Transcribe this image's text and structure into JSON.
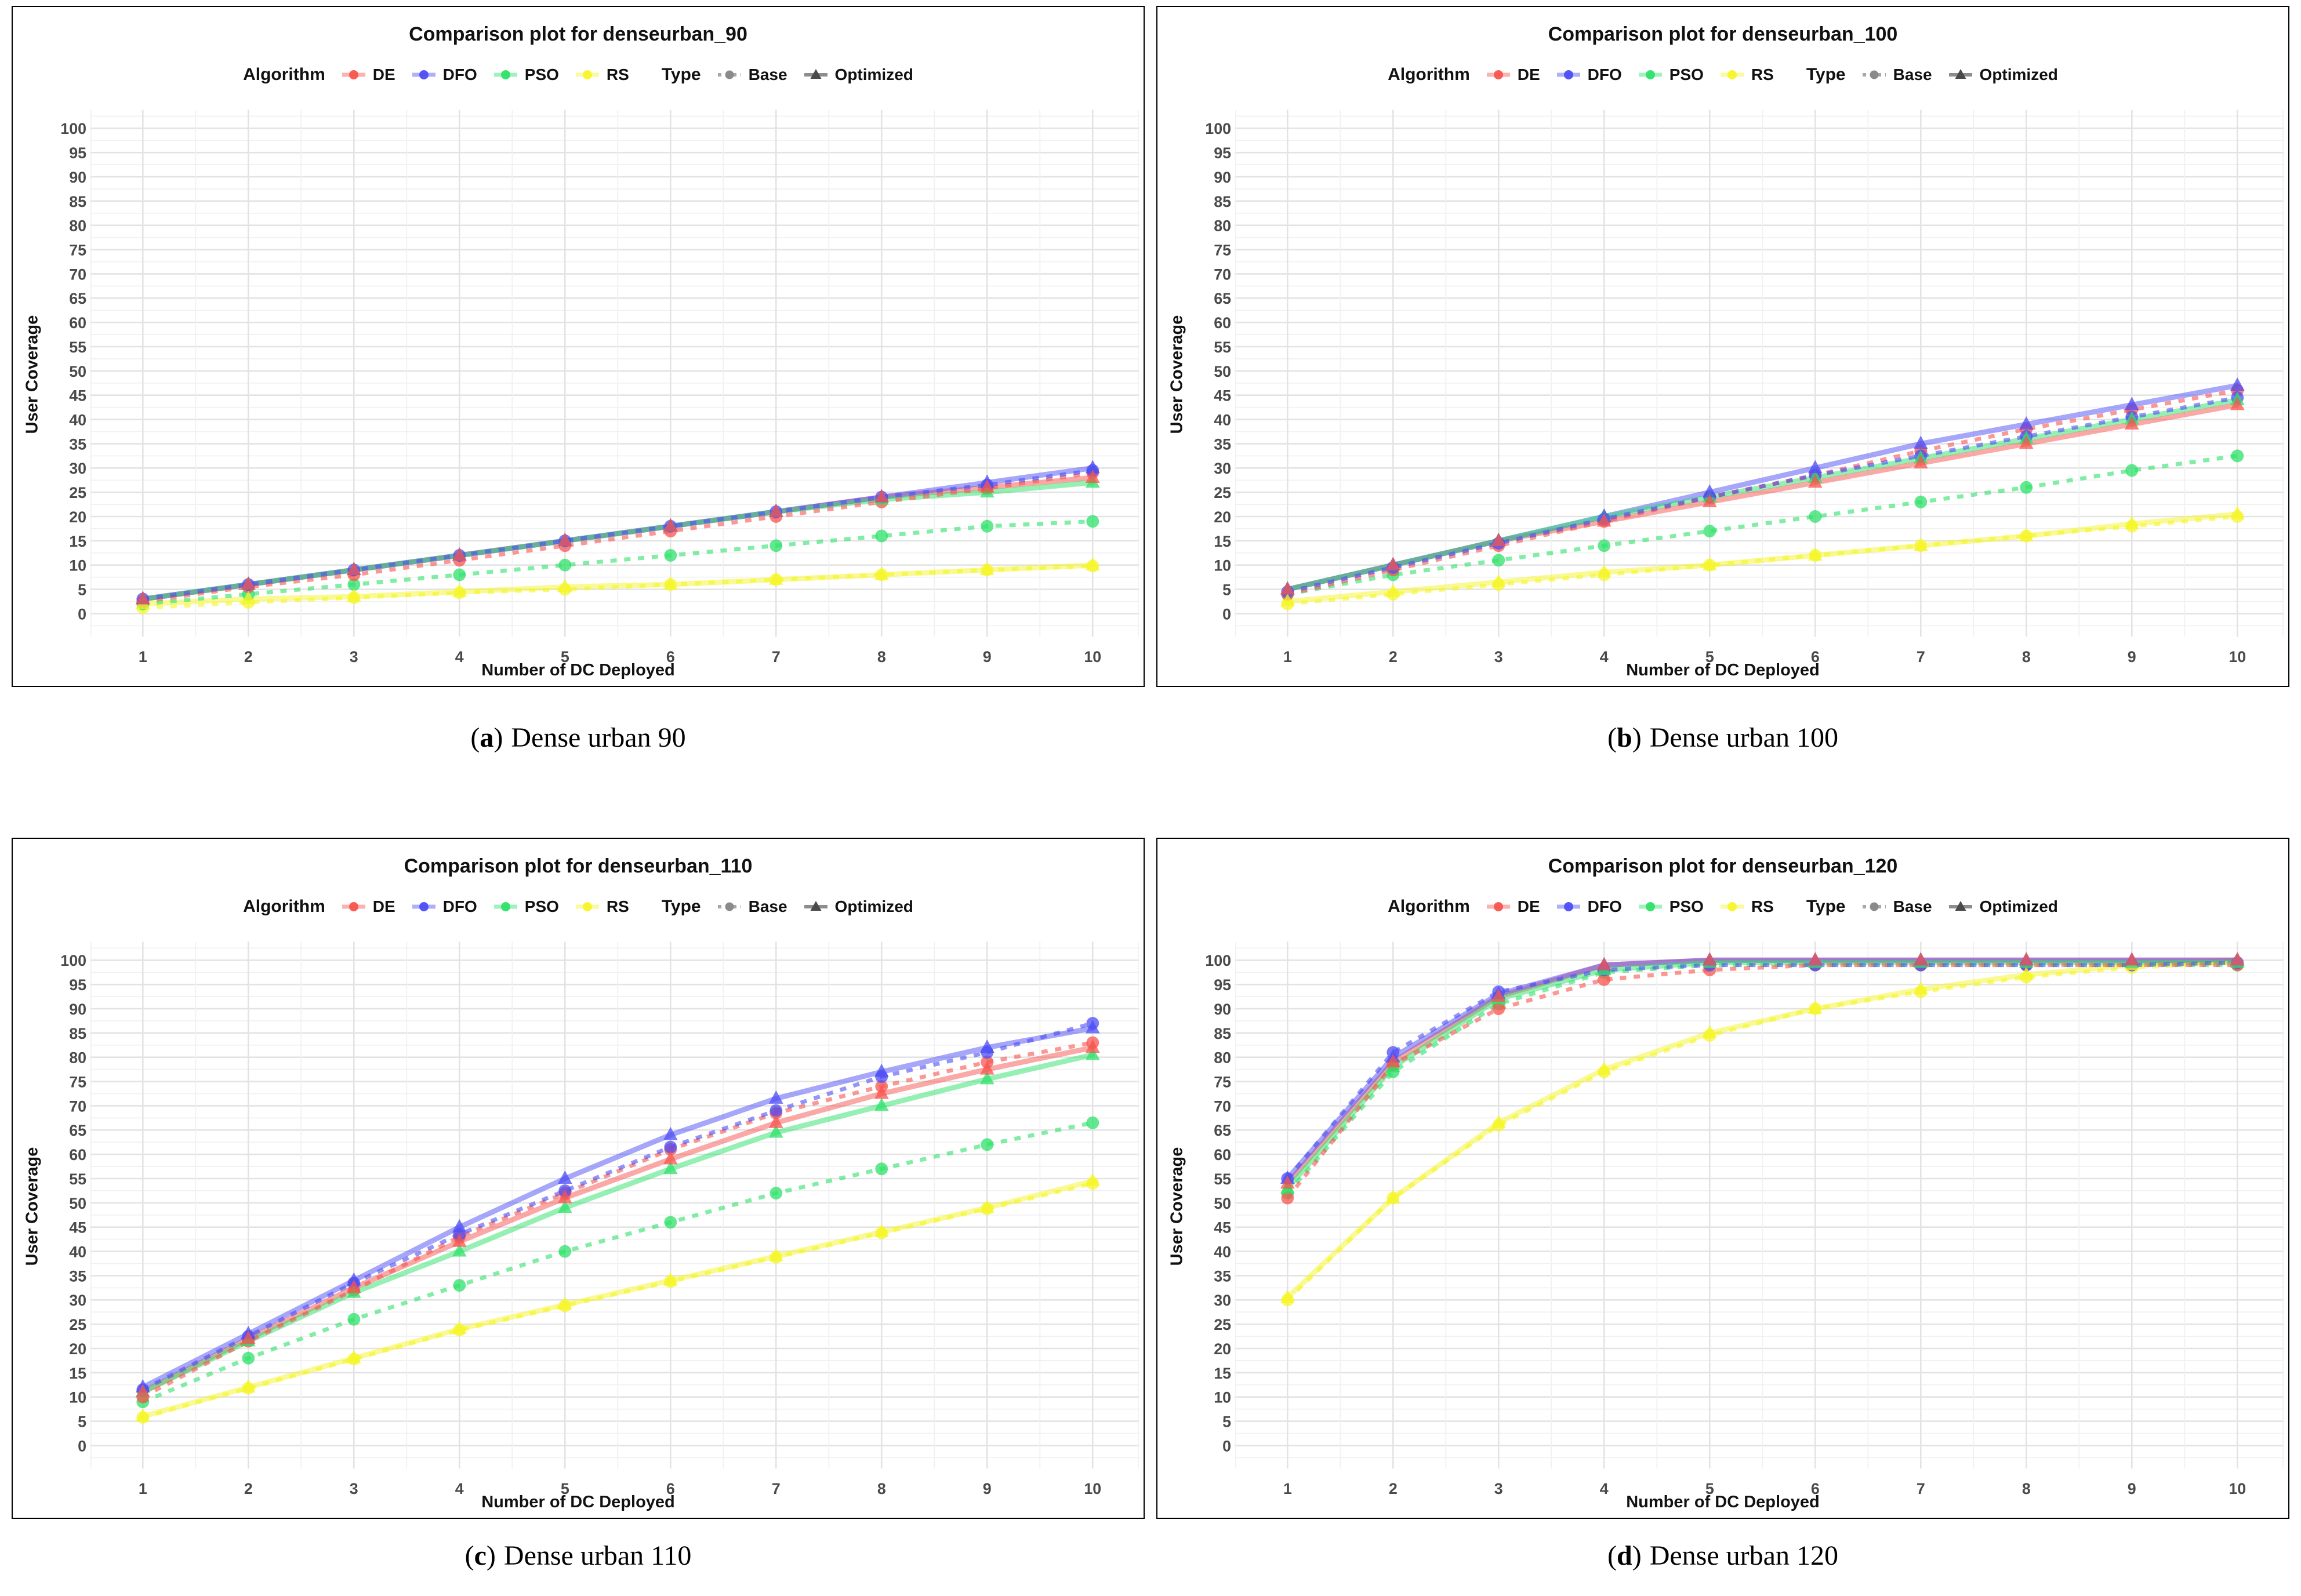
{
  "page": {
    "background": "#ffffff"
  },
  "legend": {
    "algorithm_label": "Algorithm",
    "type_label": "Type",
    "algorithms": [
      {
        "key": "DE",
        "label": "DE",
        "color": "#f8544e"
      },
      {
        "key": "DFO",
        "label": "DFO",
        "color": "#4d4df5"
      },
      {
        "key": "PSO",
        "label": "PSO",
        "color": "#2de169"
      },
      {
        "key": "RS",
        "label": "RS",
        "color": "#f5f52a"
      }
    ],
    "types": [
      {
        "key": "Base",
        "label": "Base",
        "style": "dotted",
        "marker": "circle",
        "color": "#8a8a8a"
      },
      {
        "key": "Optimized",
        "label": "Optimized",
        "style": "solid",
        "marker": "triangle",
        "color": "#676767"
      }
    ]
  },
  "captions": {
    "open": "(",
    "close": ")"
  },
  "style_colors": {
    "grid_major": "#e3e3e3",
    "grid_minor": "#f1f1f1",
    "tick_label": "#4a4a4a",
    "panel_border": "#000000"
  },
  "chart_data": [
    {
      "type": "line",
      "title": "Comparison plot for denseurban_90",
      "caption_letter": "a",
      "caption_label": "Dense urban 90",
      "xlabel": "Number of DC Deployed",
      "ylabel": "User Coverage",
      "x": [
        1,
        2,
        3,
        4,
        5,
        6,
        7,
        8,
        9,
        10
      ],
      "ylim": [
        0,
        100
      ],
      "ytick_step": 5,
      "series": [
        {
          "name": "DE Base",
          "algorithm": "DE",
          "variant": "Base",
          "dashed": true,
          "marker": "circle",
          "values": [
            2.5,
            5.5,
            8,
            11,
            14,
            17,
            20,
            23,
            25.8,
            29
          ]
        },
        {
          "name": "DE Optimized",
          "algorithm": "DE",
          "variant": "Optimized",
          "dashed": false,
          "marker": "triangle",
          "values": [
            3,
            6,
            9,
            12,
            15,
            18,
            21,
            24,
            26,
            28
          ]
        },
        {
          "name": "DFO Base",
          "algorithm": "DFO",
          "variant": "Base",
          "dashed": true,
          "marker": "circle",
          "values": [
            3,
            6,
            9,
            12,
            15,
            18,
            21,
            24,
            26.5,
            29.5
          ]
        },
        {
          "name": "DFO Optimized",
          "algorithm": "DFO",
          "variant": "Optimized",
          "dashed": false,
          "marker": "triangle",
          "values": [
            3,
            6,
            9,
            12,
            15,
            18,
            21,
            24,
            27,
            30
          ]
        },
        {
          "name": "PSO Base",
          "algorithm": "PSO",
          "variant": "Base",
          "dashed": true,
          "marker": "circle",
          "values": [
            2,
            4,
            6,
            8,
            10,
            12,
            14,
            16,
            18,
            19
          ]
        },
        {
          "name": "PSO Optimized",
          "algorithm": "PSO",
          "variant": "Optimized",
          "dashed": false,
          "marker": "triangle",
          "values": [
            3,
            6,
            9,
            12,
            15,
            18,
            21,
            23.5,
            25,
            27
          ]
        },
        {
          "name": "RS Base",
          "algorithm": "RS",
          "variant": "Base",
          "dashed": true,
          "marker": "circle",
          "values": [
            1.2,
            2.3,
            3.3,
            4.3,
            5,
            6,
            7,
            8,
            9,
            9.8
          ]
        },
        {
          "name": "RS Optimized",
          "algorithm": "RS",
          "variant": "Optimized",
          "dashed": false,
          "marker": "triangle",
          "values": [
            2,
            3,
            3.5,
            4.5,
            5.5,
            6,
            7,
            8,
            9,
            10
          ]
        }
      ]
    },
    {
      "type": "line",
      "title": "Comparison plot for denseurban_100",
      "caption_letter": "b",
      "caption_label": "Dense urban 100",
      "xlabel": "Number of DC Deployed",
      "ylabel": "User Coverage",
      "x": [
        1,
        2,
        3,
        4,
        5,
        6,
        7,
        8,
        9,
        10
      ],
      "ylim": [
        0,
        100
      ],
      "ytick_step": 5,
      "series": [
        {
          "name": "DE Base",
          "algorithm": "DE",
          "variant": "Base",
          "dashed": true,
          "marker": "circle",
          "values": [
            4,
            9,
            14,
            19,
            24,
            28.5,
            33.5,
            38,
            42,
            46
          ]
        },
        {
          "name": "DE Optimized",
          "algorithm": "DE",
          "variant": "Optimized",
          "dashed": false,
          "marker": "triangle",
          "values": [
            5,
            10,
            15,
            19,
            23,
            27,
            31,
            35,
            39,
            43
          ]
        },
        {
          "name": "DFO Base",
          "algorithm": "DFO",
          "variant": "Base",
          "dashed": true,
          "marker": "circle",
          "values": [
            4.5,
            9.5,
            14.5,
            19.5,
            24,
            28.5,
            32.5,
            36.5,
            40.5,
            44.5
          ]
        },
        {
          "name": "DFO Optimized",
          "algorithm": "DFO",
          "variant": "Optimized",
          "dashed": false,
          "marker": "triangle",
          "values": [
            5,
            10,
            15,
            20,
            25,
            30,
            35,
            39,
            43,
            47
          ]
        },
        {
          "name": "PSO Base",
          "algorithm": "PSO",
          "variant": "Base",
          "dashed": true,
          "marker": "circle",
          "values": [
            4,
            8,
            11,
            14,
            17,
            20,
            23,
            26,
            29.5,
            32.5
          ]
        },
        {
          "name": "PSO Optimized",
          "algorithm": "PSO",
          "variant": "Optimized",
          "dashed": false,
          "marker": "triangle",
          "values": [
            5,
            10,
            15,
            20,
            24,
            28,
            32,
            36,
            40,
            44
          ]
        },
        {
          "name": "RS Base",
          "algorithm": "RS",
          "variant": "Base",
          "dashed": true,
          "marker": "circle",
          "values": [
            2,
            4,
            6,
            8,
            10,
            12,
            14,
            16,
            18,
            20
          ]
        },
        {
          "name": "RS Optimized",
          "algorithm": "RS",
          "variant": "Optimized",
          "dashed": false,
          "marker": "triangle",
          "values": [
            2.5,
            4.5,
            6.5,
            8.5,
            10,
            12,
            14,
            16,
            18.5,
            20.5
          ]
        }
      ]
    },
    {
      "type": "line",
      "title": "Comparison plot for denseurban_110",
      "caption_letter": "c",
      "caption_label": "Dense urban 110",
      "xlabel": "Number of DC Deployed",
      "ylabel": "User Coverage",
      "x": [
        1,
        2,
        3,
        4,
        5,
        6,
        7,
        8,
        9,
        10
      ],
      "ylim": [
        0,
        100
      ],
      "ytick_step": 5,
      "series": [
        {
          "name": "DE Base",
          "algorithm": "DE",
          "variant": "Base",
          "dashed": true,
          "marker": "circle",
          "values": [
            10,
            21.5,
            32,
            43,
            52,
            61,
            68.5,
            74,
            79,
            83
          ]
        },
        {
          "name": "DE Optimized",
          "algorithm": "DE",
          "variant": "Optimized",
          "dashed": false,
          "marker": "triangle",
          "values": [
            11,
            22,
            32.5,
            42,
            51,
            59,
            66.5,
            72.5,
            77.5,
            82
          ]
        },
        {
          "name": "DFO Base",
          "algorithm": "DFO",
          "variant": "Base",
          "dashed": true,
          "marker": "circle",
          "values": [
            11.5,
            22.5,
            33.5,
            43.5,
            52.5,
            61.5,
            69,
            76,
            81,
            87
          ]
        },
        {
          "name": "DFO Optimized",
          "algorithm": "DFO",
          "variant": "Optimized",
          "dashed": false,
          "marker": "triangle",
          "values": [
            12,
            23,
            34,
            45,
            55,
            64,
            71.5,
            77,
            82,
            86
          ]
        },
        {
          "name": "PSO Base",
          "algorithm": "PSO",
          "variant": "Base",
          "dashed": true,
          "marker": "circle",
          "values": [
            9,
            18,
            26,
            33,
            40,
            46,
            52,
            57,
            62,
            66.5
          ]
        },
        {
          "name": "PSO Optimized",
          "algorithm": "PSO",
          "variant": "Optimized",
          "dashed": false,
          "marker": "triangle",
          "values": [
            11,
            21.5,
            31.5,
            40,
            49,
            57,
            64.5,
            70,
            75.5,
            80.5
          ]
        },
        {
          "name": "RS Base",
          "algorithm": "RS",
          "variant": "Base",
          "dashed": true,
          "marker": "circle",
          "values": [
            5.8,
            11.8,
            17.8,
            23.8,
            28.8,
            33.8,
            38.8,
            43.8,
            48.8,
            54
          ]
        },
        {
          "name": "RS Optimized",
          "algorithm": "RS",
          "variant": "Optimized",
          "dashed": false,
          "marker": "triangle",
          "values": [
            6,
            12,
            18,
            24,
            29,
            34,
            39,
            44,
            49,
            54.5
          ]
        }
      ]
    },
    {
      "type": "line",
      "title": "Comparison plot for denseurban_120",
      "caption_letter": "d",
      "caption_label": "Dense urban 120",
      "xlabel": "Number of DC Deployed",
      "ylabel": "User Coverage",
      "x": [
        1,
        2,
        3,
        4,
        5,
        6,
        7,
        8,
        9,
        10
      ],
      "ylim": [
        0,
        100
      ],
      "ytick_step": 5,
      "series": [
        {
          "name": "DE Base",
          "algorithm": "DE",
          "variant": "Base",
          "dashed": true,
          "marker": "circle",
          "values": [
            51,
            78.5,
            90,
            96,
            98,
            99,
            99,
            99,
            99,
            99
          ]
        },
        {
          "name": "DE Optimized",
          "algorithm": "DE",
          "variant": "Optimized",
          "dashed": false,
          "marker": "triangle",
          "values": [
            54,
            79,
            92.5,
            99,
            100,
            100,
            100,
            100,
            100,
            100
          ]
        },
        {
          "name": "DFO Base",
          "algorithm": "DFO",
          "variant": "Base",
          "dashed": true,
          "marker": "circle",
          "values": [
            55,
            81,
            93.5,
            98,
            99,
            99,
            99,
            99,
            99,
            99.5
          ]
        },
        {
          "name": "DFO Optimized",
          "algorithm": "DFO",
          "variant": "Optimized",
          "dashed": false,
          "marker": "triangle",
          "values": [
            55,
            80,
            93,
            99,
            100,
            100,
            100,
            100,
            100,
            100
          ]
        },
        {
          "name": "PSO Base",
          "algorithm": "PSO",
          "variant": "Base",
          "dashed": true,
          "marker": "circle",
          "values": [
            52,
            77,
            91,
            97.5,
            99,
            99,
            99,
            99,
            99,
            99
          ]
        },
        {
          "name": "PSO Optimized",
          "algorithm": "PSO",
          "variant": "Optimized",
          "dashed": false,
          "marker": "triangle",
          "values": [
            53,
            78,
            92,
            98,
            99.5,
            99.5,
            99.5,
            99.5,
            99.5,
            99.5
          ]
        },
        {
          "name": "RS Base",
          "algorithm": "RS",
          "variant": "Base",
          "dashed": true,
          "marker": "circle",
          "values": [
            30,
            51,
            66,
            77,
            84.5,
            90,
            93.5,
            96.5,
            98.5,
            99.5
          ]
        },
        {
          "name": "RS Optimized",
          "algorithm": "RS",
          "variant": "Optimized",
          "dashed": false,
          "marker": "triangle",
          "values": [
            30.5,
            51,
            66.5,
            77.5,
            85,
            90,
            94,
            97,
            99,
            100
          ]
        }
      ]
    }
  ]
}
